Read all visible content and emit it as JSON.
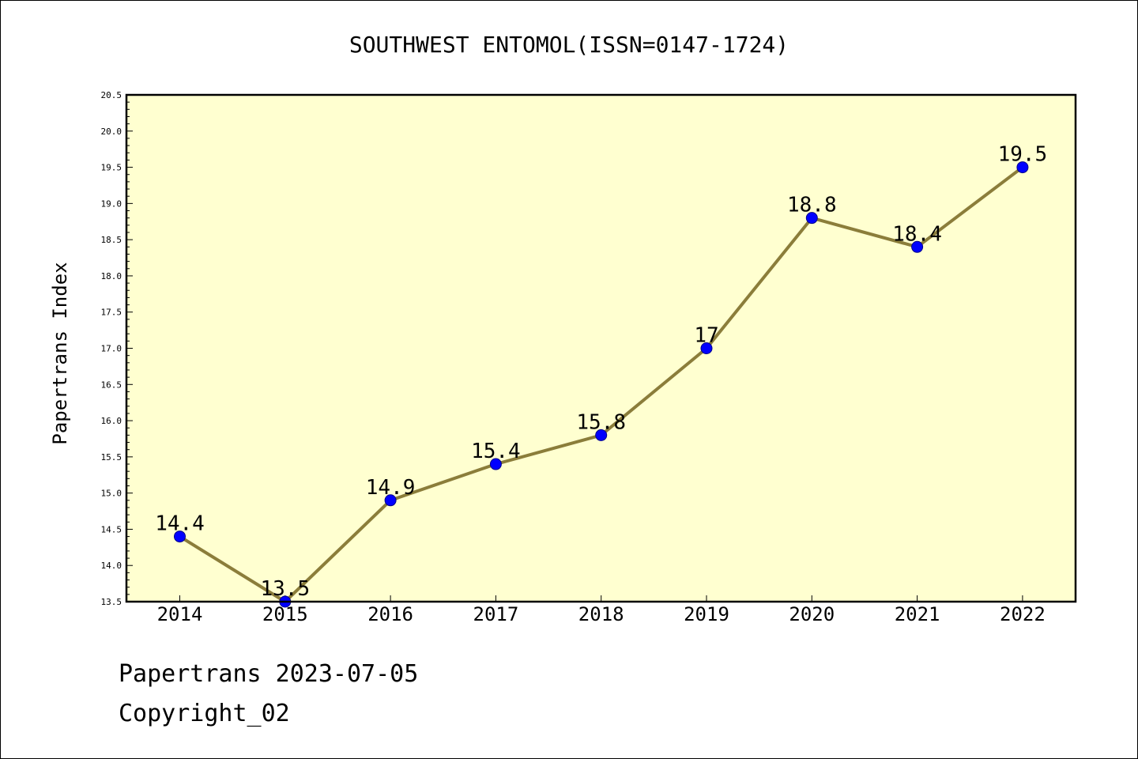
{
  "chart_data": {
    "type": "line",
    "title": "SOUTHWEST ENTOMOL(ISSN=0147-1724)",
    "ylabel": "Papertrans Index",
    "xlabel": "",
    "categories": [
      "2014",
      "2015",
      "2016",
      "2017",
      "2018",
      "2019",
      "2020",
      "2021",
      "2022"
    ],
    "series": [
      {
        "values": [
          14.4,
          13.5,
          14.9,
          15.4,
          15.8,
          17.0,
          18.8,
          18.4,
          19.5
        ],
        "labels": [
          "14.4",
          "13.5",
          "14.9",
          "15.4",
          "15.8",
          "17",
          "18.8",
          "18.4",
          "19.5"
        ]
      }
    ],
    "ylim": [
      13.5,
      20.5
    ],
    "yticks": [
      "13.5",
      "14.0",
      "14.5",
      "15.0",
      "15.5",
      "16.0",
      "16.5",
      "17.0",
      "17.5",
      "18.0",
      "18.5",
      "19.0",
      "19.5",
      "20.0",
      "20.5"
    ],
    "grid": false,
    "legend": "none",
    "colors": {
      "plot_background": "#ffffd0",
      "line": "#8b7d3a",
      "marker": "#0000ff",
      "marker_edge": "#00008b"
    }
  },
  "footer": {
    "line1": "Papertrans 2023-07-05",
    "line2": "Copyright_02"
  }
}
